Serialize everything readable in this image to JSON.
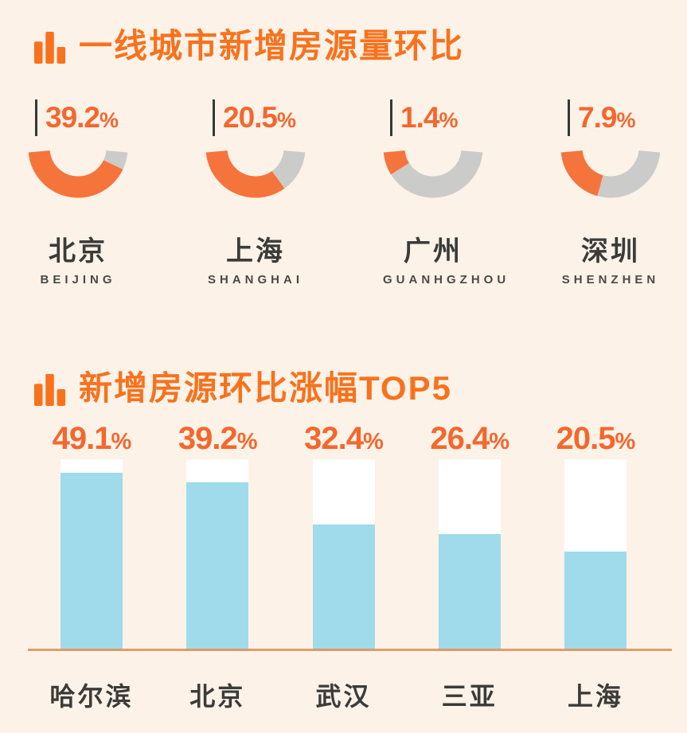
{
  "page_background": "#FCF2E8",
  "colors": {
    "title_orange": "#F8721D",
    "value_orange": "#F4672D",
    "donut_filled": "#F5743C",
    "donut_empty": "#CBCBC9",
    "bar_fill": "#A0DBEB",
    "bar_track": "#FFFFFF",
    "baseline_orange": "#E0975C",
    "dark_text": "#3B3B38",
    "tick_dark": "#333A33"
  },
  "sections": [
    {
      "title": "一线城市新增房源量环比",
      "icon": "bar-chart-icon"
    },
    {
      "title": "新增房源环比涨幅TOP5",
      "icon": "bar-chart-icon"
    }
  ],
  "chart_data": [
    {
      "type": "pie",
      "variant": "gauge-donut",
      "title": "一线城市新增房源量环比",
      "unit": "%",
      "legend_position": "none",
      "arc_total_degrees": 170,
      "items": [
        {
          "city_zh": "北京",
          "city_en": "BEIJING",
          "value": 39.2,
          "label": "39.2%",
          "fill_fraction": 0.88
        },
        {
          "city_zh": "上海",
          "city_en": "SHANGHAI",
          "value": 20.5,
          "label": "20.5%",
          "fill_fraction": 0.71
        },
        {
          "city_zh": "广州",
          "city_en": "GUANHGZHOU",
          "value": 1.4,
          "label": "1.4%",
          "fill_fraction": 0.16
        },
        {
          "city_zh": "深圳",
          "city_en": "SHENZHEN",
          "value": 7.9,
          "label": "7.9%",
          "fill_fraction": 0.41
        }
      ]
    },
    {
      "type": "bar",
      "title": "新增房源环比涨幅TOP5",
      "unit": "%",
      "xlabel": "",
      "ylabel": "",
      "ylim": [
        0,
        53
      ],
      "grid": false,
      "legend_position": "none",
      "categories": [
        "哈尔滨",
        "北京",
        "武汉",
        "三亚",
        "上海"
      ],
      "values": [
        49.1,
        39.2,
        32.4,
        26.4,
        20.5
      ],
      "labels": [
        "49.1%",
        "39.2%",
        "32.4%",
        "26.4%",
        "20.5%"
      ],
      "fill_fractions": [
        0.93,
        0.88,
        0.66,
        0.61,
        0.52
      ]
    }
  ]
}
